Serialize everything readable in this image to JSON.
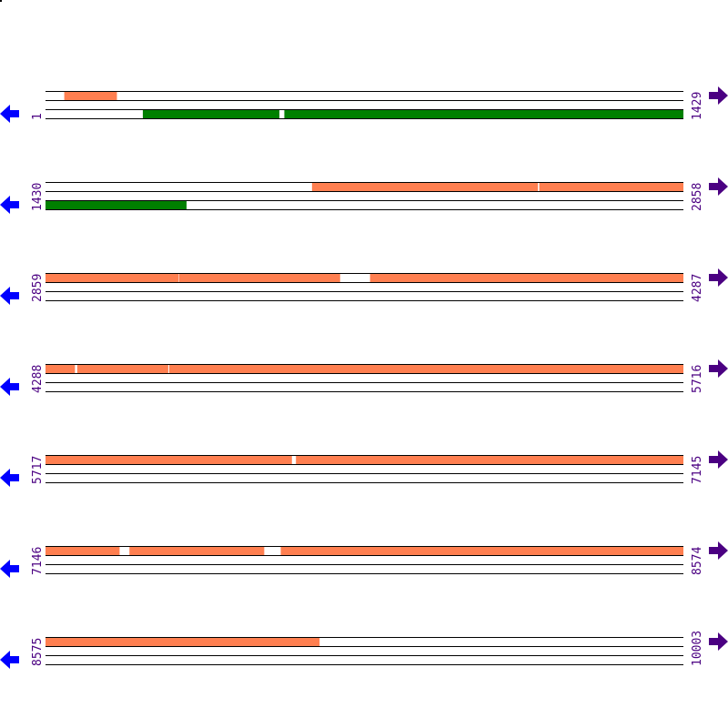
{
  "colors": {
    "forward_feature": "#ff7f50",
    "reverse_feature": "#008000",
    "label": "#4b0082",
    "left_arrow": "#0000ff",
    "right_arrow": "#4b0082",
    "track_line": "#000000"
  },
  "icons": {
    "left": "arrow-left-icon",
    "right": "arrow-right-icon"
  },
  "sequence_length": 10003,
  "rows": [
    {
      "start": "1",
      "end": "1429",
      "top": [
        [
          43,
          160
        ]
      ],
      "bottom": [
        [
          219,
          524
        ],
        [
          536,
          1429
        ]
      ]
    },
    {
      "start": "1430",
      "end": "2858",
      "top": [
        [
          2027,
          2532
        ],
        [
          2536,
          2858
        ]
      ],
      "bottom": [
        [
          1430,
          1745
        ]
      ]
    },
    {
      "start": "2859",
      "end": "4287",
      "top": [
        [
          2859,
          3156
        ],
        [
          3158,
          3518
        ],
        [
          3586,
          4287
        ]
      ],
      "bottom": []
    },
    {
      "start": "4288",
      "end": "5716",
      "top": [
        [
          4288,
          4353
        ],
        [
          4359,
          4562
        ],
        [
          4565,
          5716
        ]
      ],
      "bottom": []
    },
    {
      "start": "5717",
      "end": "7145",
      "top": [
        [
          5717,
          6268
        ],
        [
          6278,
          7145
        ]
      ],
      "bottom": []
    },
    {
      "start": "7146",
      "end": "8574",
      "top": [
        [
          7146,
          7311
        ],
        [
          7334,
          7635
        ],
        [
          7673,
          8574
        ]
      ],
      "bottom": []
    },
    {
      "start": "8575",
      "end": "10003",
      "top": [
        [
          8575,
          9188
        ]
      ],
      "bottom": []
    }
  ]
}
